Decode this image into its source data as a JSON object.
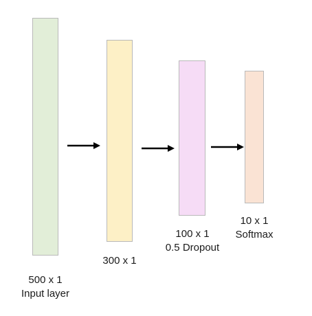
{
  "layers": [
    {
      "id": "input",
      "size": "500 x 1",
      "caption": "Input layer",
      "fill": "#e2eed8",
      "stroke": "#b9b9b9"
    },
    {
      "id": "hidden1",
      "size": "300 x 1",
      "caption": "",
      "fill": "#fdf0c6",
      "stroke": "#b9b9b9"
    },
    {
      "id": "dropout",
      "size": "100 x 1",
      "caption": "0.5 Dropout",
      "fill": "#f6dcf6",
      "stroke": "#b9b9b9"
    },
    {
      "id": "softmax",
      "size": "10 x 1",
      "caption": "Softmax",
      "fill": "#fae3d4",
      "stroke": "#b9b9b9"
    }
  ],
  "arrows": [
    {
      "from": "input",
      "to": "hidden1",
      "color": "#000000"
    },
    {
      "from": "hidden1",
      "to": "dropout",
      "color": "#000000"
    },
    {
      "from": "dropout",
      "to": "softmax",
      "color": "#000000"
    }
  ]
}
